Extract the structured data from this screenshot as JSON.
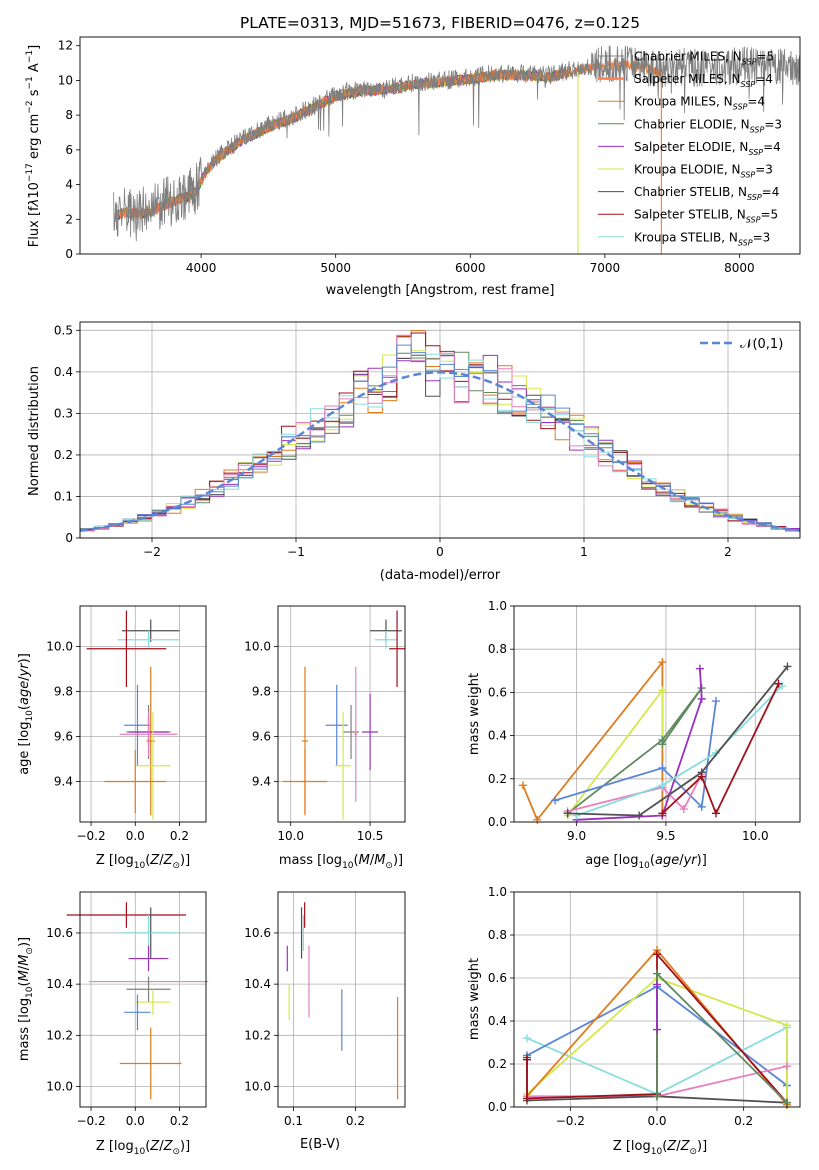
{
  "figure": {
    "title": "PLATE=0313, MJD=51673, FIBERID=0476, z=0.125",
    "colors": {
      "chabrier_miles": "#7f7f7f",
      "salpeter_miles": "#ff7f50",
      "kroupa_miles": "#e07b1d",
      "chabrier_elodie": "#5f8a5f",
      "salpeter_elodie": "#9b30c0",
      "kroupa_elodie": "#d4e84a",
      "chabrier_stelib": "#505050",
      "salpeter_stelib": "#a0101a",
      "kroupa_stelib": "#88dddd",
      "extra_blue": "#5b86d6",
      "extra_pink": "#e87fbf"
    }
  },
  "chart_data": [
    {
      "type": "line",
      "panel": "spectrum",
      "xlabel": "wavelength [Angstrom, rest frame]",
      "ylabel": "Flux [f_λ 10^-17 erg cm^-2 s^-1 A^-1]",
      "xlim": [
        3100,
        8450
      ],
      "ylim": [
        0,
        12.5
      ],
      "xticks": [
        4000,
        5000,
        6000,
        7000,
        8000
      ],
      "yticks": [
        0,
        2,
        4,
        6,
        8,
        10,
        12
      ],
      "legend": [
        "Chabrier MILES, N_SSP=5",
        "Salpeter MILES, N_SSP=4",
        "Kroupa MILES, N_SSP=4",
        "Chabrier ELODIE, N_SSP=3",
        "Salpeter ELODIE, N_SSP=4",
        "Kroupa ELODIE, N_SSP=3",
        "Chabrier STELIB, N_SSP=4",
        "Salpeter STELIB, N_SSP=5",
        "Kroupa STELIB, N_SSP=3"
      ],
      "continuum": {
        "x": [
          3350,
          3450,
          3550,
          3650,
          3750,
          3850,
          3950,
          4050,
          4150,
          4300,
          4500,
          4700,
          4850,
          5000,
          5200,
          5400,
          5600,
          5800,
          6000,
          6200,
          6400,
          6600,
          6800,
          7000,
          7200,
          7400,
          7600,
          7800,
          8000,
          8200,
          8400
        ],
        "y": [
          2.3,
          2.5,
          2.4,
          2.6,
          3.0,
          3.3,
          3.6,
          5.0,
          5.8,
          6.6,
          7.4,
          8.0,
          8.6,
          9.2,
          9.5,
          9.6,
          9.9,
          10.0,
          10.2,
          10.4,
          10.4,
          10.3,
          10.7,
          10.9,
          11.0,
          10.6,
          10.8,
          10.6,
          10.9,
          10.7,
          10.8
        ]
      }
    },
    {
      "type": "line",
      "panel": "residual-histogram",
      "xlabel": "(data-model)/error",
      "ylabel": "Normed distribution",
      "xlim": [
        -2.5,
        2.5
      ],
      "ylim": [
        0,
        0.52
      ],
      "xticks": [
        -2,
        -1,
        0,
        1,
        2
      ],
      "yticks": [
        0.0,
        0.1,
        0.2,
        0.3,
        0.4,
        0.5
      ],
      "legend": [
        "𝒩(0,1)"
      ],
      "series": [
        {
          "name": "N(0,1)",
          "x": [
            -2.5,
            -2.0,
            -1.5,
            -1.0,
            -0.5,
            0.0,
            0.5,
            1.0,
            1.5,
            2.0,
            2.5
          ],
          "values": [
            0.018,
            0.054,
            0.13,
            0.242,
            0.352,
            0.399,
            0.352,
            0.242,
            0.13,
            0.054,
            0.018
          ]
        }
      ]
    },
    {
      "type": "scatter",
      "panel": "age-vs-Z",
      "xlabel": "Z [log10(Z/Z☉)]",
      "ylabel": "age [log10(age/yr)]",
      "xlim": [
        -0.25,
        0.32
      ],
      "ylim": [
        9.22,
        10.18
      ],
      "xticks": [
        -0.2,
        0.0,
        0.2
      ],
      "xticklabels": [
        "−0.2",
        "0.0",
        "0.2"
      ],
      "yticks": [
        9.4,
        9.6,
        9.8,
        10.0
      ],
      "yticklabels": [
        "9.4",
        "9.6",
        "9.8",
        "10.0"
      ],
      "points": [
        {
          "c": "chabrier_stelib",
          "x": 0.07,
          "y": 10.07,
          "xe": 0.13,
          "ye": 0.05
        },
        {
          "c": "kroupa_stelib",
          "x": 0.06,
          "y": 10.03,
          "xe": 0.14,
          "ye": 0.04
        },
        {
          "c": "salpeter_stelib",
          "x": -0.04,
          "y": 9.99,
          "xe": 0.18,
          "ye": 0.17
        },
        {
          "c": "kroupa_miles",
          "x": 0.07,
          "y": 9.58,
          "xe": 0.02,
          "ye": 0.33
        },
        {
          "c": "extra_blue",
          "x": 0.01,
          "y": 9.65,
          "xe": 0.06,
          "ye": 0.18
        },
        {
          "c": "chabrier_miles",
          "x": 0.06,
          "y": 9.62,
          "xe": 0.1,
          "ye": 0.12
        },
        {
          "c": "salpeter_elodie",
          "x": 0.06,
          "y": 9.62,
          "xe": 0.09,
          "ye": 0.06
        },
        {
          "c": "extra_pink",
          "x": 0.06,
          "y": 9.61,
          "xe": 0.13,
          "ye": 0.1
        },
        {
          "c": "kroupa_elodie",
          "x": 0.08,
          "y": 9.47,
          "xe": 0.08,
          "ye": 0.24
        },
        {
          "c": "kroupa_miles",
          "x": 0.0,
          "y": 9.4,
          "xe": 0.14,
          "ye": 0.14
        }
      ]
    },
    {
      "type": "scatter",
      "panel": "age-vs-mass",
      "xlabel": "mass [log10(M/M☉)]",
      "xlim": [
        9.92,
        10.72
      ],
      "ylim": [
        9.22,
        10.18
      ],
      "xticks": [
        10.0,
        10.5
      ],
      "xticklabels": [
        "10.0",
        "10.5"
      ],
      "yticks": [
        9.4,
        9.6,
        9.8,
        10.0
      ],
      "yticklabels": [
        "9.4",
        "9.6",
        "9.8",
        "10.0"
      ],
      "points": [
        {
          "c": "chabrier_stelib",
          "x": 10.6,
          "y": 10.07,
          "xe": 0.1,
          "ye": 0.05
        },
        {
          "c": "kroupa_stelib",
          "x": 10.6,
          "y": 10.03,
          "xe": 0.07,
          "ye": 0.04
        },
        {
          "c": "salpeter_stelib",
          "x": 10.67,
          "y": 9.99,
          "xe": 0.05,
          "ye": 0.17
        },
        {
          "c": "kroupa_miles",
          "x": 10.09,
          "y": 9.58,
          "xe": 0.02,
          "ye": 0.33
        },
        {
          "c": "extra_blue",
          "x": 10.29,
          "y": 9.65,
          "xe": 0.07,
          "ye": 0.18
        },
        {
          "c": "chabrier_miles",
          "x": 10.38,
          "y": 9.62,
          "xe": 0.05,
          "ye": 0.12
        },
        {
          "c": "salpeter_elodie",
          "x": 10.5,
          "y": 9.62,
          "xe": 0.05,
          "ye": 0.17
        },
        {
          "c": "extra_pink",
          "x": 10.41,
          "y": 9.61,
          "xe": 0.01,
          "ye": 0.3
        },
        {
          "c": "kroupa_elodie",
          "x": 10.33,
          "y": 9.47,
          "xe": 0.05,
          "ye": 0.24
        },
        {
          "c": "kroupa_miles",
          "x": 10.09,
          "y": 9.4,
          "xe": 0.14,
          "ye": 0.14
        }
      ]
    },
    {
      "type": "line",
      "panel": "mass-weight-vs-age",
      "xlabel": "age [log10(age/yr)]",
      "ylabel": "mass weight",
      "xlim": [
        8.65,
        10.25
      ],
      "ylim": [
        0,
        1.0
      ],
      "xticks": [
        9.0,
        9.5,
        10.0
      ],
      "xticklabels": [
        "9.0",
        "9.5",
        "10.0"
      ],
      "yticks": [
        0.0,
        0.2,
        0.4,
        0.6,
        0.8,
        1.0
      ],
      "yticklabels": [
        "0.0",
        "0.2",
        "0.4",
        "0.6",
        "0.8",
        "1.0"
      ],
      "series": [
        {
          "c": "kroupa_miles",
          "x": [
            8.7,
            8.78,
            9.48,
            9.48
          ],
          "values": [
            0.17,
            0.01,
            0.74,
            0.03
          ]
        },
        {
          "c": "kroupa_elodie",
          "x": [
            8.95,
            9.48,
            9.48
          ],
          "values": [
            0.03,
            0.61,
            0.36
          ]
        },
        {
          "c": "chabrier_elodie",
          "x": [
            8.95,
            9.48,
            9.7,
            9.48
          ],
          "values": [
            0.04,
            0.38,
            0.62,
            0.36
          ]
        },
        {
          "c": "extra_blue",
          "x": [
            8.88,
            9.48,
            9.7,
            9.78
          ],
          "values": [
            0.1,
            0.25,
            0.07,
            0.56
          ]
        },
        {
          "c": "salpeter_elodie",
          "x": [
            9.0,
            9.48,
            9.7,
            9.69
          ],
          "values": [
            0.01,
            0.03,
            0.57,
            0.71
          ]
        },
        {
          "c": "extra_pink",
          "x": [
            8.95,
            9.48,
            9.6,
            9.7
          ],
          "values": [
            0.05,
            0.16,
            0.06,
            0.22
          ]
        },
        {
          "c": "kroupa_stelib",
          "x": [
            9.0,
            9.48,
            9.78,
            10.15
          ],
          "values": [
            0.03,
            0.17,
            0.32,
            0.63
          ]
        },
        {
          "c": "chabrier_stelib",
          "x": [
            8.95,
            9.35,
            9.7,
            10.18
          ],
          "values": [
            0.04,
            0.03,
            0.23,
            0.72
          ]
        },
        {
          "c": "salpeter_stelib",
          "x": [
            9.48,
            9.7,
            9.78,
            10.13
          ],
          "values": [
            0.04,
            0.21,
            0.04,
            0.64
          ]
        }
      ]
    },
    {
      "type": "scatter",
      "panel": "mass-vs-Z",
      "xlabel": "Z [log10(Z/Z☉)]",
      "ylabel": "mass [log10(M/M☉)]",
      "xlim": [
        -0.25,
        0.32
      ],
      "ylim": [
        9.92,
        10.76
      ],
      "xticks": [
        -0.2,
        0.0,
        0.2
      ],
      "xticklabels": [
        "−0.2",
        "0.0",
        "0.2"
      ],
      "yticks": [
        10.0,
        10.2,
        10.4,
        10.6
      ],
      "yticklabels": [
        "10.0",
        "10.2",
        "10.4",
        "10.6"
      ],
      "points": [
        {
          "c": "salpeter_stelib",
          "x": -0.04,
          "y": 10.67,
          "xe": 0.27,
          "ye": 0.05
        },
        {
          "c": "chabrier_stelib",
          "x": 0.07,
          "y": 10.6,
          "xe": 0.13,
          "ye": 0.1
        },
        {
          "c": "kroupa_stelib",
          "x": 0.06,
          "y": 10.6,
          "xe": 0.14,
          "ye": 0.07
        },
        {
          "c": "salpeter_elodie",
          "x": 0.06,
          "y": 10.5,
          "xe": 0.09,
          "ye": 0.05
        },
        {
          "c": "extra_pink",
          "x": 0.06,
          "y": 10.41,
          "xe": 0.27,
          "ye": 0.01
        },
        {
          "c": "chabrier_miles",
          "x": 0.06,
          "y": 10.38,
          "xe": 0.1,
          "ye": 0.05
        },
        {
          "c": "kroupa_elodie",
          "x": 0.08,
          "y": 10.33,
          "xe": 0.08,
          "ye": 0.05
        },
        {
          "c": "extra_blue",
          "x": 0.01,
          "y": 10.29,
          "xe": 0.06,
          "ye": 0.07
        },
        {
          "c": "kroupa_miles",
          "x": 0.07,
          "y": 10.09,
          "xe": 0.14,
          "ye": 0.14
        }
      ]
    },
    {
      "type": "scatter",
      "panel": "mass-vs-EBV",
      "xlabel": "E(B-V)",
      "xlim": [
        0.075,
        0.28
      ],
      "ylim": [
        9.92,
        10.76
      ],
      "xticks": [
        0.1,
        0.2
      ],
      "xticklabels": [
        "0.1",
        "0.2"
      ],
      "yticks": [
        10.0,
        10.2,
        10.4,
        10.6
      ],
      "yticklabels": [
        "10.0",
        "10.2",
        "10.4",
        "10.6"
      ],
      "points": [
        {
          "c": "salpeter_stelib",
          "x": 0.118,
          "y": 10.67,
          "xe": 0.0,
          "ye": 0.05
        },
        {
          "c": "chabrier_stelib",
          "x": 0.113,
          "y": 10.6,
          "xe": 0.0,
          "ye": 0.1
        },
        {
          "c": "kroupa_stelib",
          "x": 0.116,
          "y": 10.6,
          "xe": 0.0,
          "ye": 0.07
        },
        {
          "c": "salpeter_elodie",
          "x": 0.09,
          "y": 10.5,
          "xe": 0.0,
          "ye": 0.05
        },
        {
          "c": "extra_pink",
          "x": 0.125,
          "y": 10.41,
          "xe": 0.0,
          "ye": 0.14
        },
        {
          "c": "kroupa_elodie",
          "x": 0.093,
          "y": 10.33,
          "xe": 0.0,
          "ye": 0.07
        },
        {
          "c": "extra_blue",
          "x": 0.178,
          "y": 10.26,
          "xe": 0.0,
          "ye": 0.12
        },
        {
          "c": "kroupa_miles",
          "x": 0.268,
          "y": 10.15,
          "xe": 0.0,
          "ye": 0.2
        }
      ]
    },
    {
      "type": "line",
      "panel": "mass-weight-vs-Z",
      "xlabel": "Z [log10(Z/Z☉)]",
      "ylabel": "mass weight",
      "xlim": [
        -0.33,
        0.33
      ],
      "ylim": [
        0,
        1.0
      ],
      "xticks": [
        -0.2,
        0.0,
        0.2
      ],
      "xticklabels": [
        "−0.2",
        "0.0",
        "0.2"
      ],
      "yticks": [
        0.0,
        0.2,
        0.4,
        0.6,
        0.8,
        1.0
      ],
      "yticklabels": [
        "0.0",
        "0.2",
        "0.4",
        "0.6",
        "0.8",
        "1.0"
      ],
      "series": [
        {
          "c": "kroupa_stelib",
          "x": [
            -0.3,
            0.0,
            0.3,
            0.3
          ],
          "values": [
            0.32,
            0.06,
            0.37,
            0.1
          ]
        },
        {
          "c": "extra_blue",
          "x": [
            -0.3,
            0.0,
            0.3,
            0.3
          ],
          "values": [
            0.24,
            0.56,
            0.1,
            0.01
          ]
        },
        {
          "c": "kroupa_elodie",
          "x": [
            -0.3,
            0.0,
            0.3,
            0.3
          ],
          "values": [
            0.06,
            0.6,
            0.38,
            0.01
          ]
        },
        {
          "c": "kroupa_miles",
          "x": [
            -0.3,
            0.0,
            0.3
          ],
          "values": [
            0.05,
            0.73,
            0.01
          ]
        },
        {
          "c": "extra_pink",
          "x": [
            -0.3,
            0.0,
            0.3
          ],
          "values": [
            0.05,
            0.05,
            0.19
          ]
        },
        {
          "c": "chabrier_stelib",
          "x": [
            -0.3,
            -0.3,
            0.0,
            0.3
          ],
          "values": [
            0.23,
            0.03,
            0.05,
            0.02
          ]
        },
        {
          "c": "salpeter_stelib",
          "x": [
            -0.3,
            -0.3,
            0.0,
            0.0,
            0.3
          ],
          "values": [
            0.22,
            0.04,
            0.06,
            0.71,
            0.02
          ]
        },
        {
          "c": "chabrier_elodie",
          "x": [
            0.0,
            0.0,
            0.3
          ],
          "values": [
            0.05,
            0.62,
            0.02
          ]
        },
        {
          "c": "salpeter_elodie",
          "x": [
            0.0,
            0.0
          ],
          "values": [
            0.36,
            0.57
          ]
        }
      ]
    }
  ]
}
